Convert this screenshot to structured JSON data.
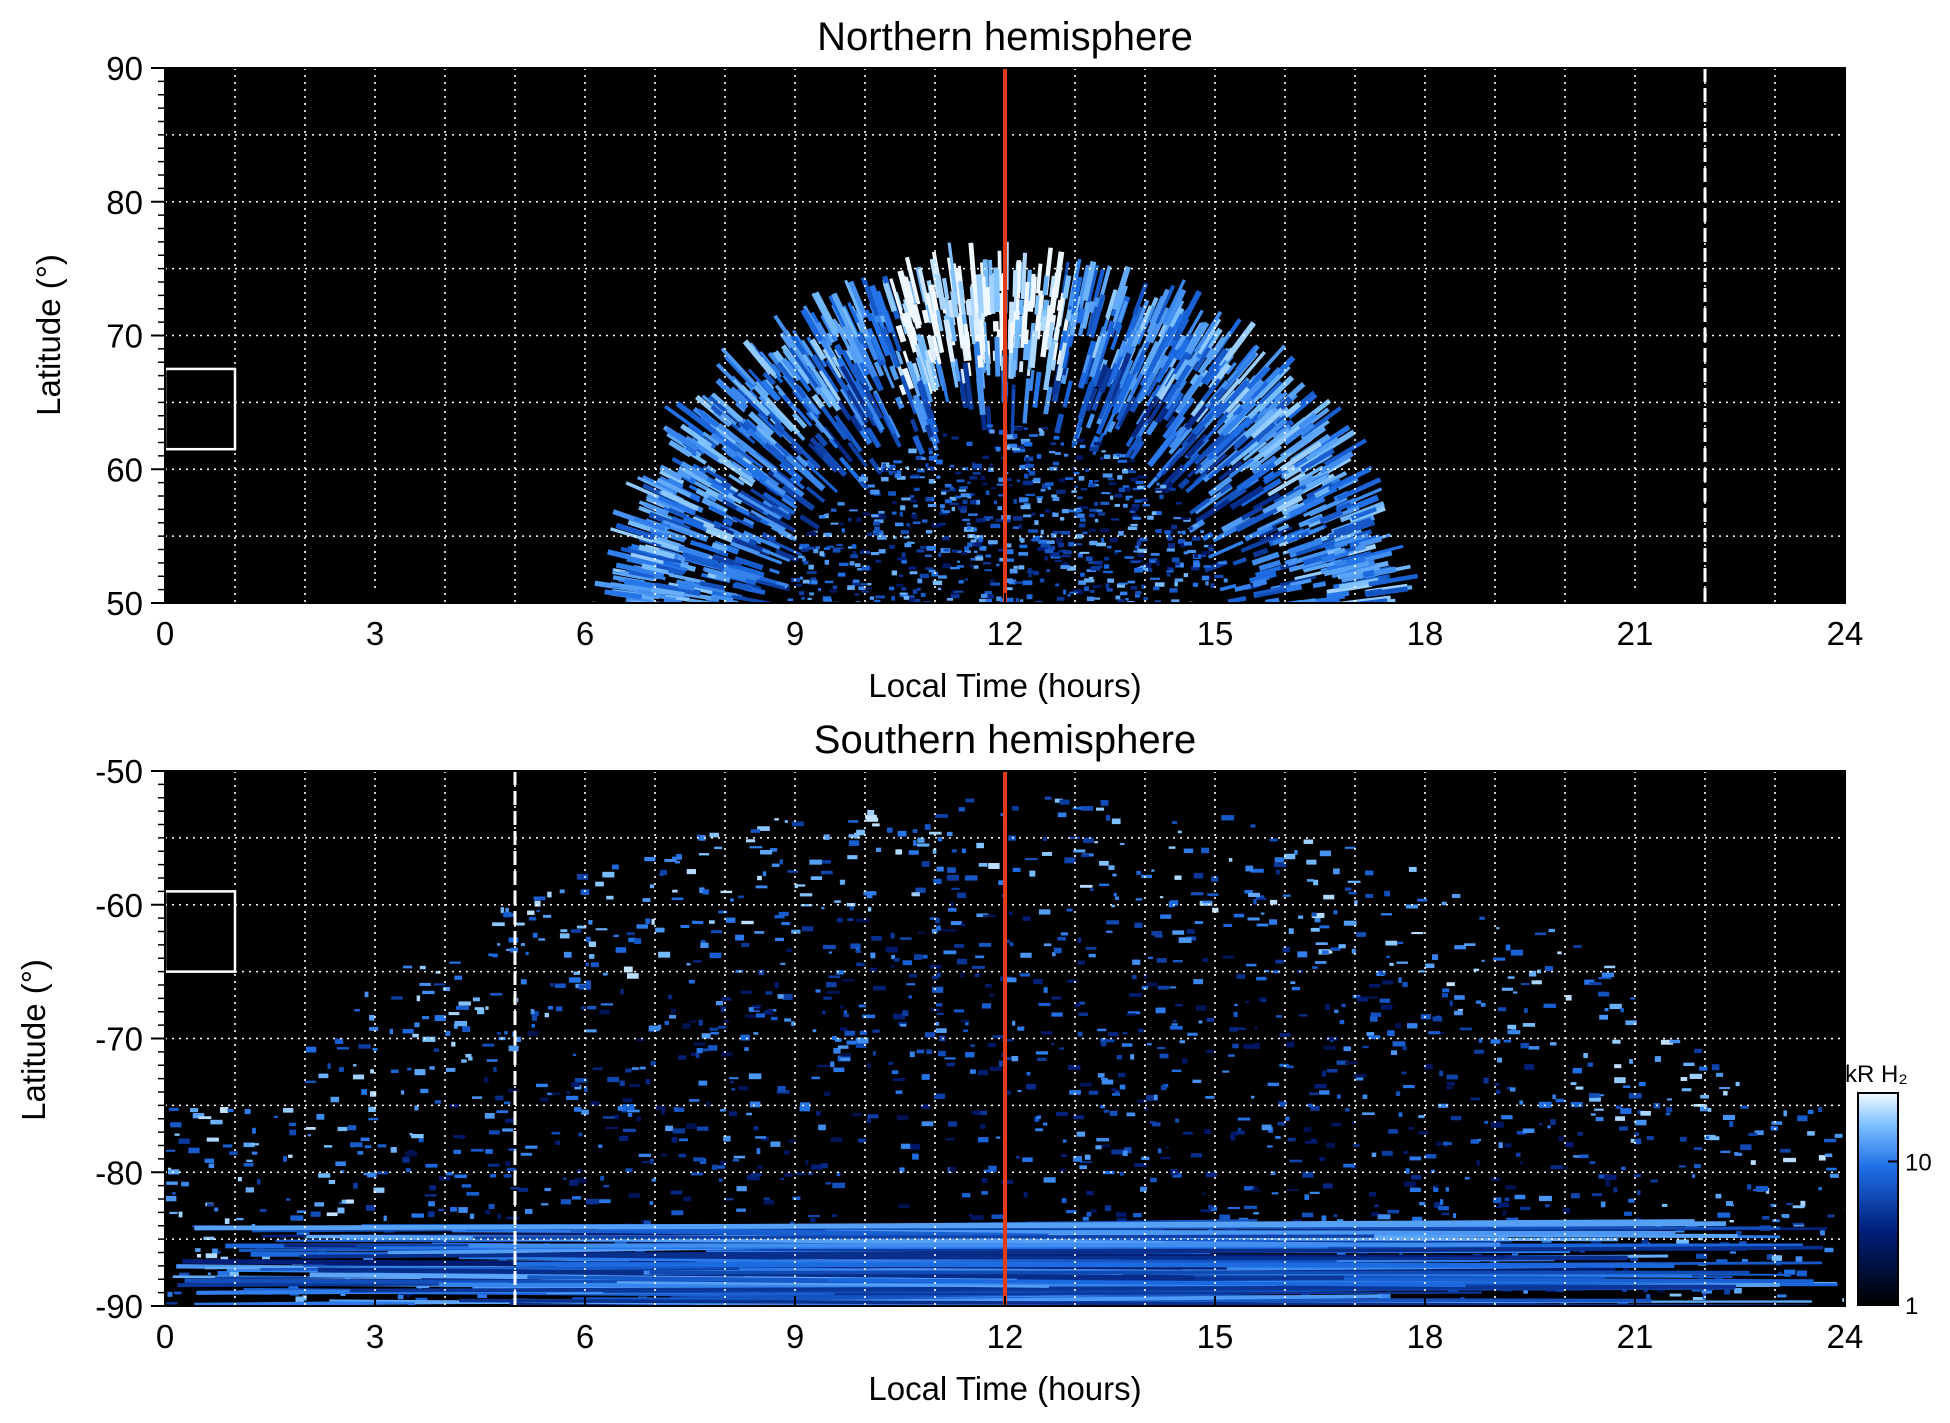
{
  "colors": {
    "background": "#000000",
    "aurora_low": "#001a66",
    "aurora_mid": "#1e6fe0",
    "aurora_high": "#dcefff",
    "noon_line": "#e23b1a",
    "grid": "#ffffff"
  },
  "chart_data": [
    {
      "type": "heatmap",
      "title": "Northern hemisphere",
      "xlabel": "Local Time (hours)",
      "ylabel": "Latitude (°)",
      "xlim": [
        0,
        24
      ],
      "ylim": [
        50,
        90
      ],
      "x_ticks": [
        0,
        3,
        6,
        9,
        12,
        15,
        18,
        21,
        24
      ],
      "y_ticks": [
        50,
        60,
        70,
        80,
        90
      ],
      "grid": true,
      "noon_line_x": 12,
      "dashed_line_x": 22,
      "box": {
        "x": [
          0,
          1
        ],
        "y": [
          61.5,
          67.5
        ]
      },
      "auroral_oval": {
        "center_lt": 12,
        "lt_extent_at_50": [
          7.6,
          16.6
        ],
        "poleward_edge_lat": 73.5,
        "bright_arc_lat": [
          62,
          72
        ],
        "brightest_lt": [
          10.5,
          12.8
        ]
      }
    },
    {
      "type": "heatmap",
      "title": "Southern hemisphere",
      "xlabel": "Local Time (hours)",
      "ylabel": "Latitude (°)",
      "xlim": [
        0,
        24
      ],
      "ylim": [
        -90,
        -50
      ],
      "x_ticks": [
        0,
        3,
        6,
        9,
        12,
        15,
        18,
        21,
        24
      ],
      "y_ticks": [
        -90,
        -80,
        -70,
        -60,
        -50
      ],
      "grid": true,
      "noon_line_x": 12,
      "dashed_line_x": 5,
      "box": {
        "x": [
          0,
          1
        ],
        "y": [
          -65,
          -59
        ]
      },
      "colorbar": {
        "label": "kR H₂",
        "ticks": [
          "1",
          "10"
        ],
        "range_kR": [
          1,
          30
        ],
        "scale": "log"
      }
    }
  ]
}
